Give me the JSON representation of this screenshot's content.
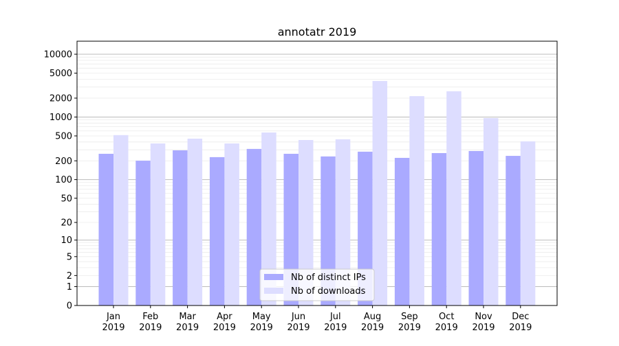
{
  "chart_data": {
    "type": "bar",
    "title": "annotatr 2019",
    "xlabel": "",
    "ylabel": "",
    "y_scale": "symlog (log10(1+y))",
    "ylim": [
      0,
      13000
    ],
    "y_ticks": [
      0,
      1,
      2,
      5,
      10,
      20,
      50,
      100,
      200,
      500,
      1000,
      2000,
      5000,
      10000
    ],
    "grid": true,
    "legend_position": "lower center",
    "categories": [
      [
        "Jan",
        "2019"
      ],
      [
        "Feb",
        "2019"
      ],
      [
        "Mar",
        "2019"
      ],
      [
        "Apr",
        "2019"
      ],
      [
        "May",
        "2019"
      ],
      [
        "Jun",
        "2019"
      ],
      [
        "Jul",
        "2019"
      ],
      [
        "Aug",
        "2019"
      ],
      [
        "Sep",
        "2019"
      ],
      [
        "Oct",
        "2019"
      ],
      [
        "Nov",
        "2019"
      ],
      [
        "Dec",
        "2019"
      ]
    ],
    "series": [
      {
        "name": "Nb of distinct IPs",
        "color": "#aaaaff",
        "values": [
          259,
          201,
          294,
          229,
          310,
          259,
          235,
          280,
          223,
          266,
          287,
          240
        ]
      },
      {
        "name": "Nb of downloads",
        "color": "#ddddff",
        "values": [
          515,
          379,
          452,
          379,
          567,
          430,
          441,
          3750,
          2150,
          2570,
          963,
          409
        ]
      }
    ]
  }
}
